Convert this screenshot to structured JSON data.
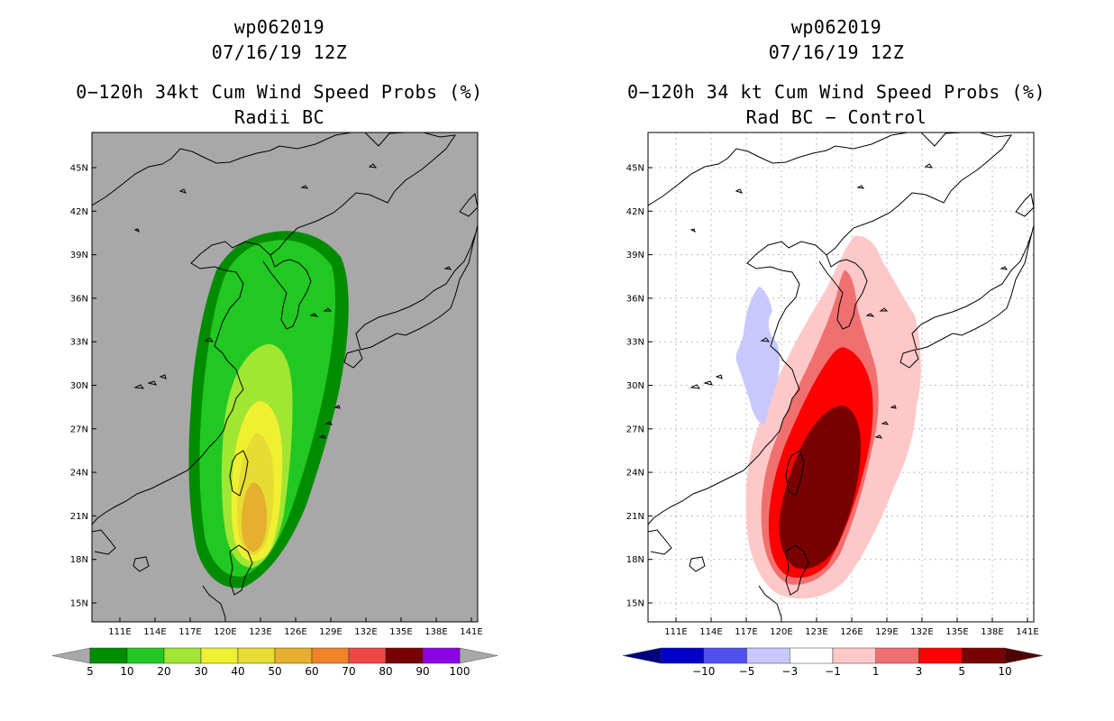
{
  "left_panel": {
    "storm_id": "wp062019",
    "datetime": "07/16/19 12Z",
    "product": "0−120h 34kt Cum Wind Speed Probs (%)",
    "subtitle": "Radii BC",
    "colorbar": {
      "labels": [
        "5",
        "10",
        "20",
        "30",
        "40",
        "50",
        "60",
        "70",
        "80",
        "90",
        "100"
      ],
      "colors": [
        "#008c00",
        "#22c822",
        "#a0e632",
        "#f0f032",
        "#e6dc32",
        "#e6af2d",
        "#f08228",
        "#f04646",
        "#780000",
        "#8c00e6"
      ]
    },
    "background_color": "#a8a8a8"
  },
  "right_panel": {
    "storm_id": "wp062019",
    "datetime": "07/16/19 12Z",
    "product": "0−120h 34 kt Cum Wind Speed Probs (%)",
    "subtitle": "Rad BC − Control",
    "colorbar": {
      "labels": [
        "−10",
        "−5",
        "−3",
        "−1",
        "1",
        "3",
        "5",
        "10"
      ],
      "colors": [
        "#0000c8",
        "#5050f0",
        "#c8c8ff",
        "#ffffff",
        "#ffc8c8",
        "#f07070",
        "#ff0000",
        "#780000"
      ]
    },
    "background_color": "#ffffff"
  },
  "axes": {
    "lat_labels": [
      "45N",
      "42N",
      "39N",
      "36N",
      "33N",
      "30N",
      "27N",
      "24N",
      "21N",
      "18N",
      "15N"
    ],
    "lon_labels": [
      "111E",
      "114E",
      "117E",
      "120E",
      "123E",
      "126E",
      "129E",
      "132E",
      "135E",
      "138E",
      "141E"
    ]
  }
}
